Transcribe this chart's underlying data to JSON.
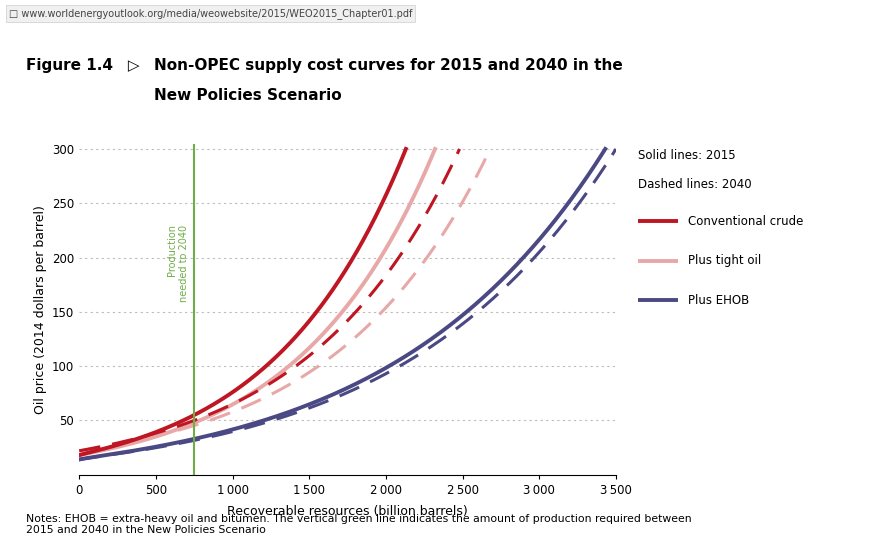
{
  "title_fig": "Figure 1.4",
  "title_arrow": " ▷ ",
  "title_line1": "Non-OPEC supply cost curves for 2015 and 2040 in the",
  "title_line2": "New Policies Scenario",
  "url_text": "□ www.worldenergyoutlook.org/media/weowebsite/2015/WEO2015_Chapter01.pdf",
  "xlabel": "Recoverable resources (billion barrels)",
  "ylabel": "Oil price (2014 dollars per barrel)",
  "notes": "Notes: EHOB = extra-heavy oil and bitumen. The vertical green line indicates the amount of production required between\n2015 and 2040 in the New Policies Scenario",
  "xlim": [
    0,
    3500
  ],
  "ylim": [
    0,
    305
  ],
  "xticks": [
    0,
    500,
    1000,
    1500,
    2000,
    2500,
    3000,
    3500
  ],
  "yticks": [
    50,
    100,
    150,
    200,
    250,
    300
  ],
  "green_line_x": 750,
  "green_line_label": "Production\nneeded to 2040",
  "colors": {
    "conv_crude": "#be1622",
    "tight_oil": "#e8a8a8",
    "ehob": "#4b4984",
    "green_line": "#70ad47",
    "background": "#ffffff",
    "grid": "#aaaaaa"
  },
  "legend_solid": "Solid lines: 2015",
  "legend_dashed": "Dashed lines: 2040",
  "legend_conv": "Conventional crude",
  "legend_tight": "Plus tight oil",
  "legend_ehob": "Plus EHOB",
  "curve_params": {
    "conv_2015": {
      "x_end": 2130,
      "a": 18,
      "b": 0.0028,
      "p": 1.85
    },
    "conv_2040": {
      "x_end": 2480,
      "a": 22,
      "b": 0.0022,
      "p": 1.88
    },
    "tight_2015": {
      "x_end": 2320,
      "a": 18,
      "b": 0.0023,
      "p": 1.88
    },
    "tight_2040": {
      "x_end": 2680,
      "a": 22,
      "b": 0.0018,
      "p": 1.9
    },
    "ehob_2015": {
      "x_end": 3430,
      "a": 14,
      "b": 0.00085,
      "p": 1.92
    },
    "ehob_2040": {
      "x_end": 3500,
      "a": 14,
      "b": 0.0008,
      "p": 1.93
    }
  }
}
